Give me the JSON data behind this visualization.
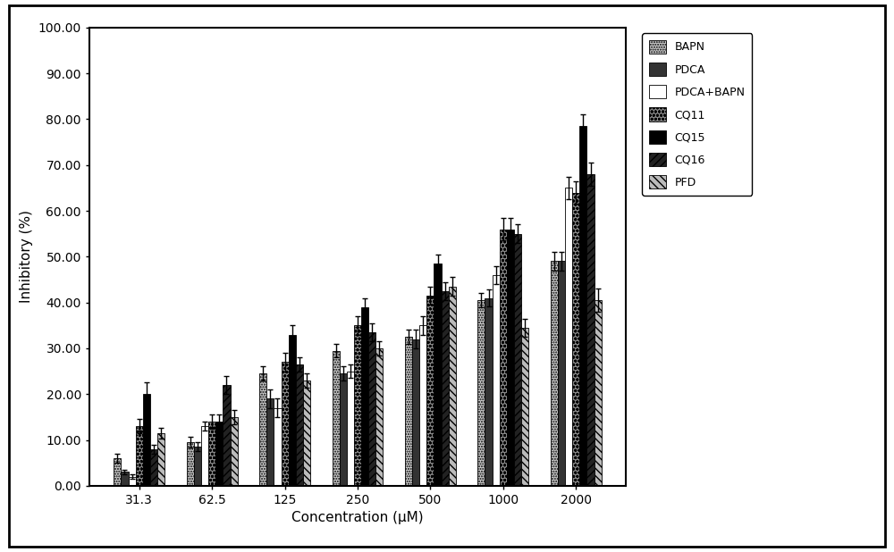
{
  "categories": [
    "31.3",
    "62.5",
    "125",
    "250",
    "500",
    "1000",
    "2000"
  ],
  "series": [
    {
      "label": "BAPN",
      "values": [
        6.0,
        9.5,
        24.5,
        29.5,
        32.5,
        40.5,
        49.0
      ],
      "errors": [
        1.0,
        1.2,
        1.5,
        1.5,
        1.5,
        1.5,
        2.0
      ],
      "hatch": "......",
      "facecolor": "#cccccc",
      "edgecolor": "black"
    },
    {
      "label": "PDCA",
      "values": [
        3.0,
        8.5,
        19.0,
        24.5,
        32.0,
        41.0,
        49.0
      ],
      "errors": [
        0.5,
        1.0,
        2.0,
        1.5,
        2.0,
        1.8,
        2.0
      ],
      "hatch": "||||||||",
      "facecolor": "#555555",
      "edgecolor": "black"
    },
    {
      "label": "PDCA+BAPN",
      "values": [
        2.0,
        13.0,
        17.0,
        25.0,
        35.0,
        46.0,
        65.0
      ],
      "errors": [
        0.5,
        1.0,
        2.0,
        1.5,
        2.0,
        2.0,
        2.5
      ],
      "hatch": "",
      "facecolor": "white",
      "edgecolor": "black"
    },
    {
      "label": "CQ11",
      "values": [
        13.0,
        14.0,
        27.0,
        35.0,
        41.5,
        56.0,
        64.0
      ],
      "errors": [
        1.5,
        1.5,
        2.0,
        2.0,
        2.0,
        2.5,
        2.5
      ],
      "hatch": "oooo",
      "facecolor": "#888888",
      "edgecolor": "black"
    },
    {
      "label": "CQ15",
      "values": [
        20.0,
        14.0,
        33.0,
        39.0,
        48.5,
        56.0,
        78.5
      ],
      "errors": [
        2.5,
        1.5,
        2.0,
        2.0,
        2.0,
        2.5,
        2.5
      ],
      "hatch": "",
      "facecolor": "black",
      "edgecolor": "black"
    },
    {
      "label": "CQ16",
      "values": [
        8.0,
        22.0,
        26.5,
        33.5,
        42.5,
        55.0,
        68.0
      ],
      "errors": [
        1.0,
        2.0,
        1.5,
        2.0,
        2.0,
        2.0,
        2.5
      ],
      "hatch": "////",
      "facecolor": "#444444",
      "edgecolor": "black"
    },
    {
      "label": "PFD",
      "values": [
        11.5,
        15.0,
        23.0,
        30.0,
        43.5,
        34.5,
        40.5
      ],
      "errors": [
        1.2,
        1.5,
        1.5,
        1.5,
        2.0,
        2.0,
        2.5
      ],
      "hatch": "////",
      "facecolor": "#aaaaaa",
      "edgecolor": "black"
    }
  ],
  "ylabel": "Inhibitory (%)",
  "xlabel": "Concentration (μM)",
  "ylim": [
    0,
    100
  ],
  "yticks": [
    0.0,
    10.0,
    20.0,
    30.0,
    40.0,
    50.0,
    60.0,
    70.0,
    80.0,
    90.0,
    100.0
  ],
  "ytick_labels": [
    "0.00",
    "10.00",
    "20.00",
    "30.00",
    "40.00",
    "50.00",
    "60.00",
    "70.00",
    "80.00",
    "90.00",
    "100.00"
  ],
  "bar_width": 0.1,
  "figsize": [
    10.0,
    6.18
  ],
  "dpi": 100,
  "outer_border": true
}
